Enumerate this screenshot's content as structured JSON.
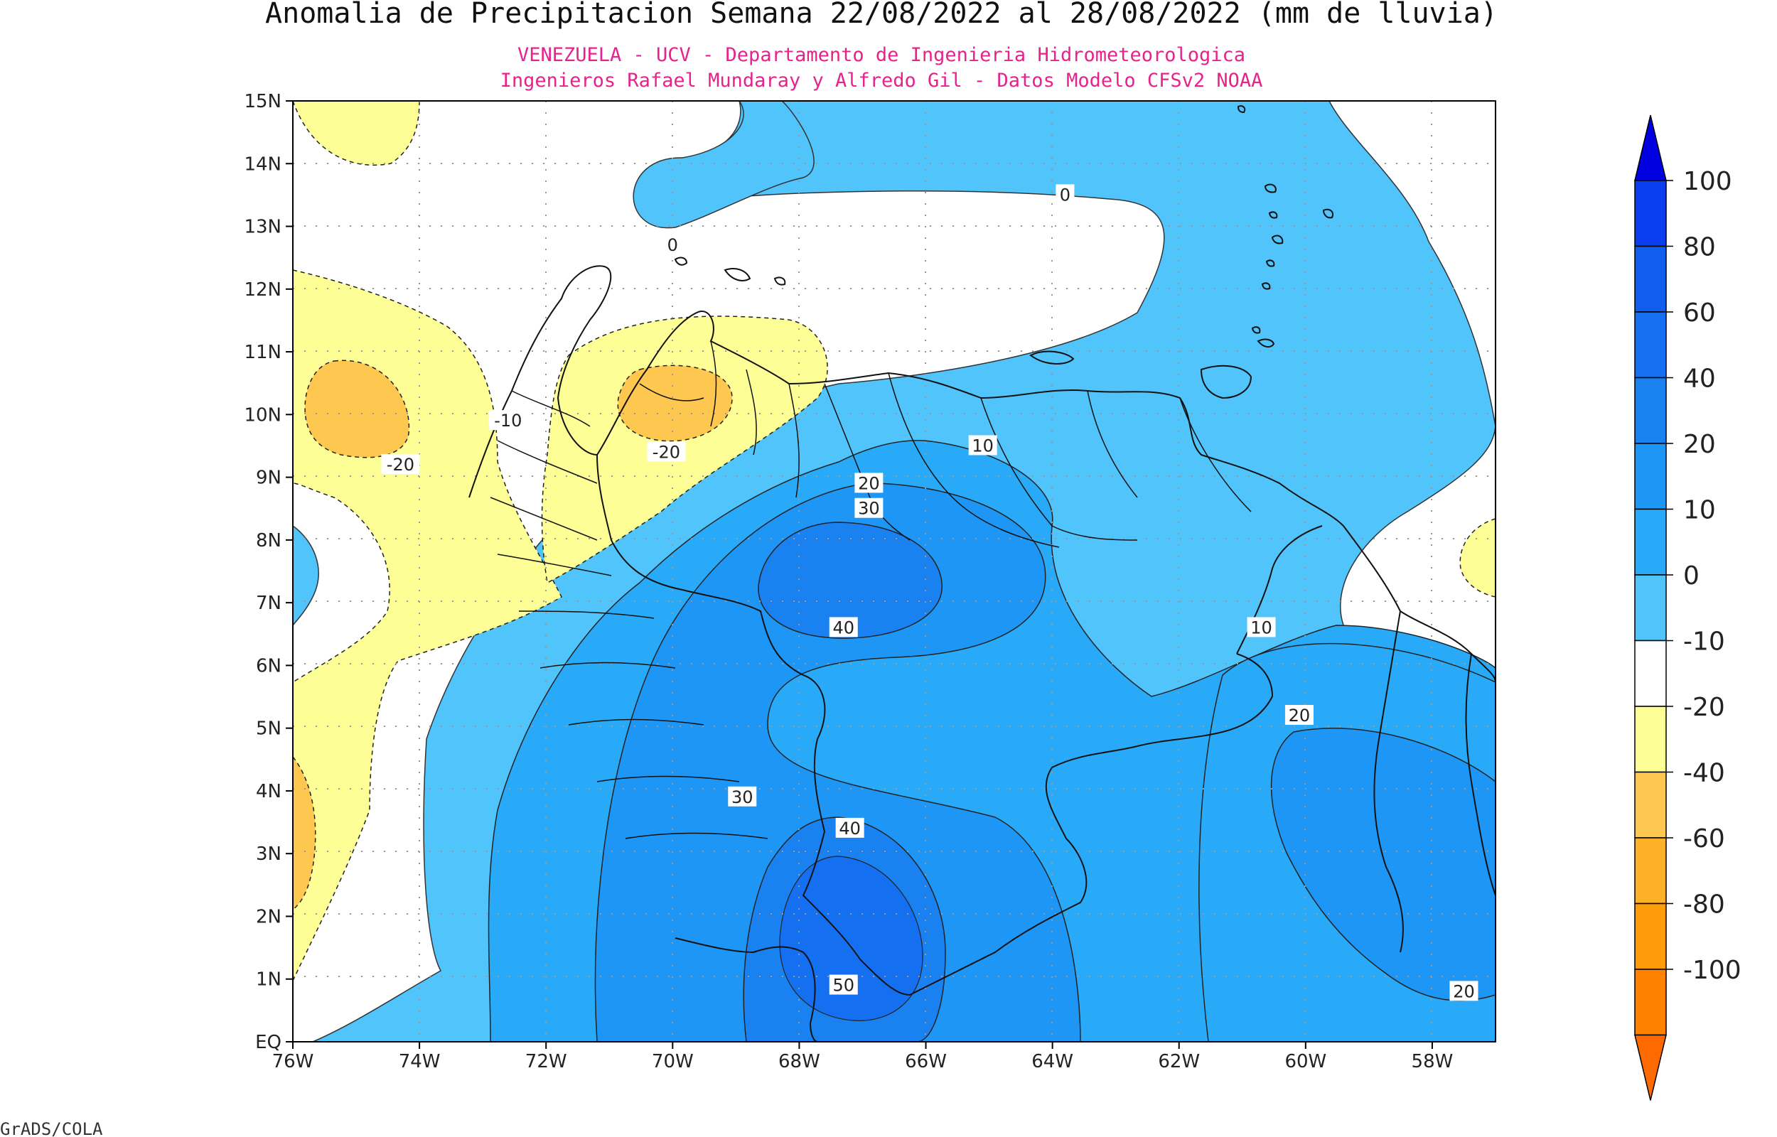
{
  "title": "Anomalia de Precipitacion Semana 22/08/2022 al 28/08/2022 (mm de lluvia)",
  "subtitle_1": "VENEZUELA - UCV - Departamento de Ingenieria Hidrometeorologica",
  "subtitle_2": "Ingenieros Rafael Mundaray y Alfredo Gil - Datos Modelo CFSv2 NOAA",
  "credit": "GrADS/COLA",
  "map": {
    "lon_range": [
      -76,
      -57
    ],
    "lat_range": [
      0,
      15
    ],
    "x_ticks": [
      "76W",
      "74W",
      "72W",
      "70W",
      "68W",
      "66W",
      "64W",
      "62W",
      "60W",
      "58W"
    ],
    "y_ticks": [
      "EQ",
      "1N",
      "2N",
      "3N",
      "4N",
      "5N",
      "6N",
      "7N",
      "8N",
      "9N",
      "10N",
      "11N",
      "12N",
      "13N",
      "14N",
      "15N"
    ],
    "grid": true
  },
  "colorbar": {
    "labels": [
      "100",
      "80",
      "60",
      "40",
      "20",
      "10",
      "0",
      "-10",
      "-20",
      "-40",
      "-60",
      "-80",
      "-100"
    ],
    "colors": [
      "#0a3cf0",
      "#0f5ef0",
      "#1470f0",
      "#1a82f0",
      "#1e96f5",
      "#28aaf8",
      "#50c4fb",
      "#ffffff",
      "#fefe96",
      "#fec850",
      "#feb028",
      "#fe9c0a",
      "#fe8200"
    ],
    "top_arrow_color": "#0000e0",
    "bottom_arrow_color": "#ff6a00"
  },
  "contour_labels": [
    {
      "text": "0",
      "lon": -70,
      "lat": 12.7
    },
    {
      "text": "0",
      "lon": -63.8,
      "lat": 13.5
    },
    {
      "text": "-10",
      "lon": -72.6,
      "lat": 9.9
    },
    {
      "text": "-20",
      "lon": -74.3,
      "lat": 9.2
    },
    {
      "text": "-20",
      "lon": -70.1,
      "lat": 9.4
    },
    {
      "text": "10",
      "lon": -65.1,
      "lat": 9.5
    },
    {
      "text": "20",
      "lon": -66.9,
      "lat": 8.9
    },
    {
      "text": "30",
      "lon": -66.9,
      "lat": 8.5
    },
    {
      "text": "40",
      "lon": -67.3,
      "lat": 6.6
    },
    {
      "text": "10",
      "lon": -60.7,
      "lat": 6.6
    },
    {
      "text": "20",
      "lon": -60.1,
      "lat": 5.2
    },
    {
      "text": "30",
      "lon": -68.9,
      "lat": 3.9
    },
    {
      "text": "40",
      "lon": -67.2,
      "lat": 3.4
    },
    {
      "text": "50",
      "lon": -67.3,
      "lat": 0.9
    },
    {
      "text": "20",
      "lon": -57.5,
      "lat": 0.8
    }
  ]
}
